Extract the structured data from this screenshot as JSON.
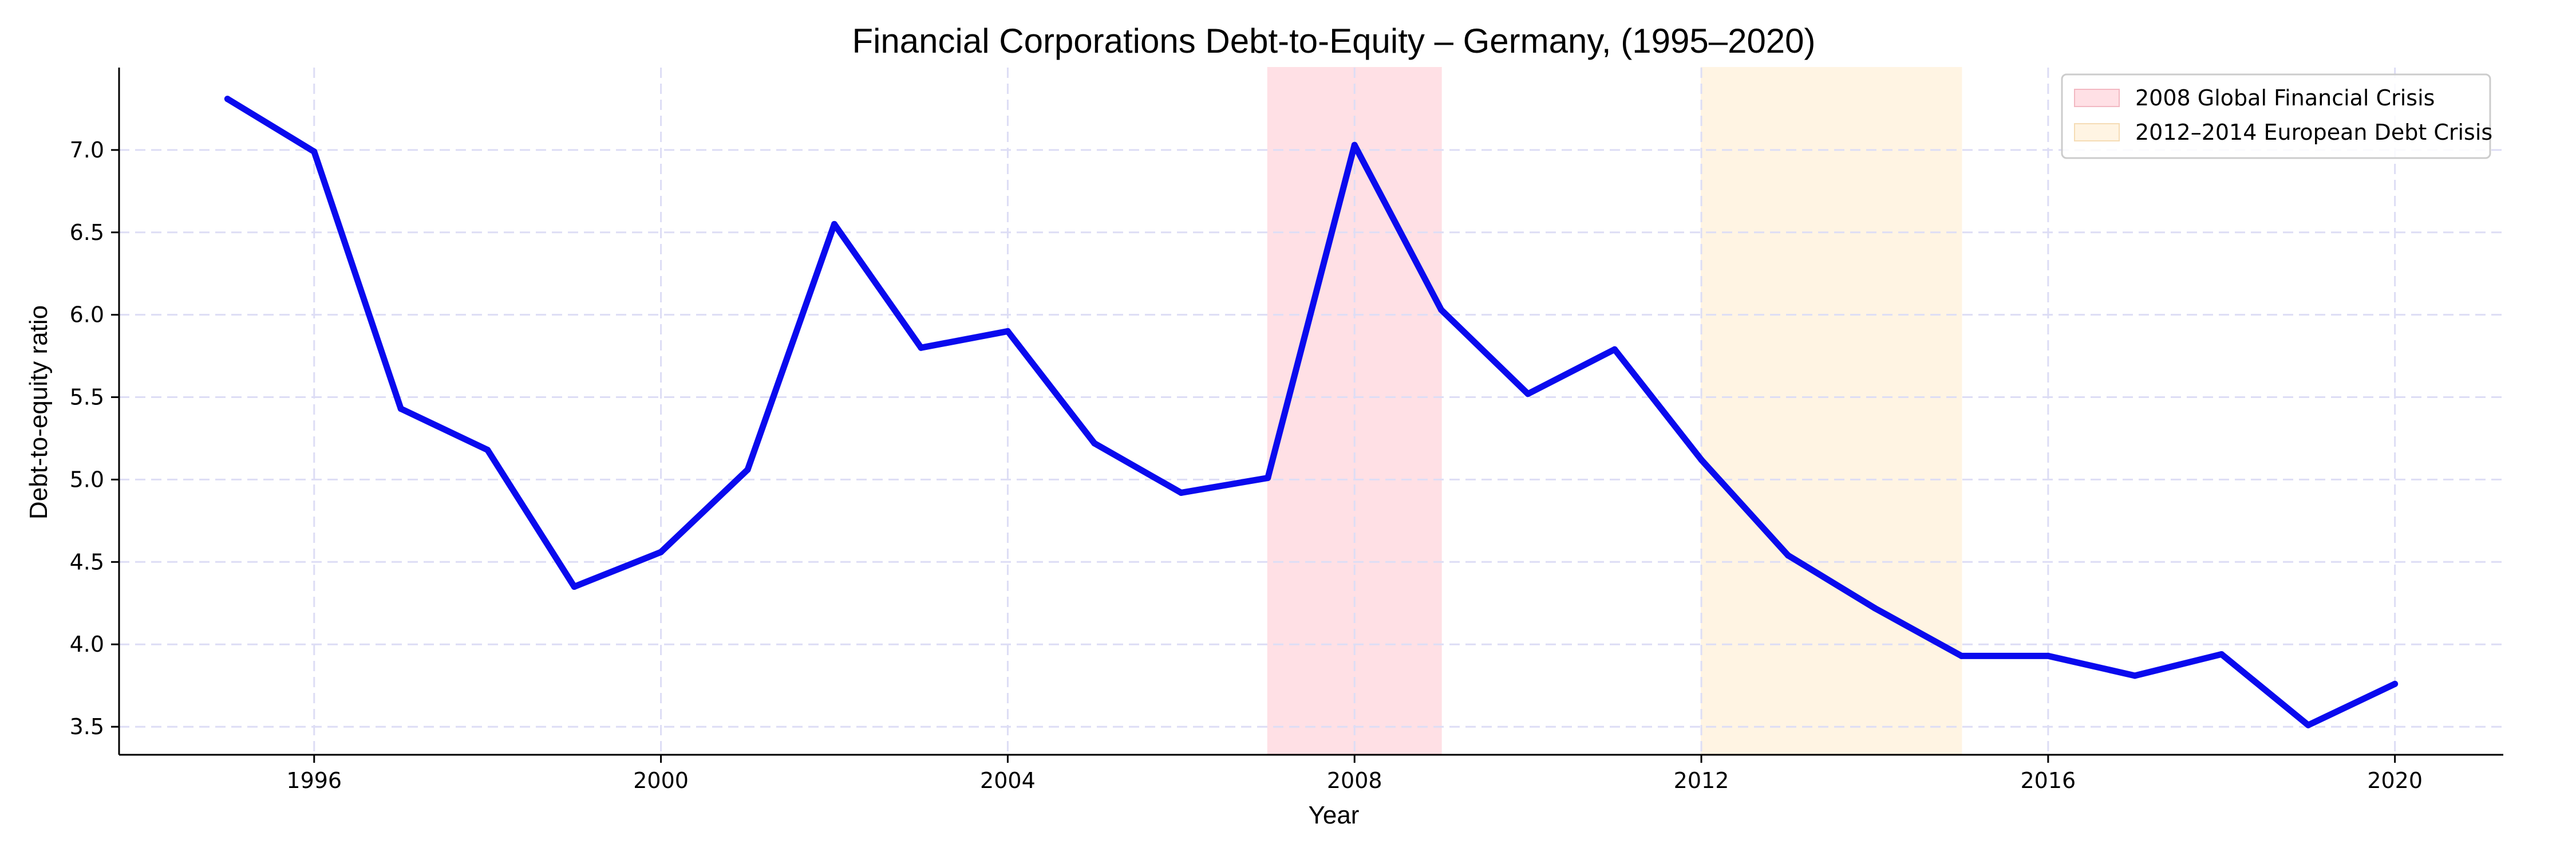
{
  "chart_data": {
    "type": "line",
    "title": "Financial Corporations Debt-to-Equity – Germany, (1995–2020)",
    "xlabel": "Year",
    "ylabel": "Debt-to-equity ratio",
    "x": [
      1995,
      1996,
      1997,
      1998,
      1999,
      2000,
      2001,
      2002,
      2003,
      2004,
      2005,
      2006,
      2007,
      2008,
      2009,
      2010,
      2011,
      2012,
      2013,
      2014,
      2015,
      2016,
      2017,
      2018,
      2019,
      2020
    ],
    "series": [
      {
        "values": [
          7.31,
          6.99,
          5.43,
          5.18,
          4.35,
          4.56,
          5.06,
          6.55,
          5.8,
          5.9,
          5.22,
          4.92,
          5.01,
          7.03,
          6.03,
          5.52,
          5.79,
          5.12,
          4.54,
          4.22,
          3.93,
          3.93,
          3.81,
          3.94,
          3.51,
          3.76
        ],
        "color": "#0a0aee"
      }
    ],
    "xlim": [
      1993.75,
      2021.25
    ],
    "ylim": [
      3.33,
      7.5
    ],
    "xticks": [
      1996,
      2000,
      2004,
      2008,
      2012,
      2016,
      2020
    ],
    "yticks": [
      3.5,
      4.0,
      4.5,
      5.0,
      5.5,
      6.0,
      6.5,
      7.0
    ],
    "grid": true,
    "grid_color": "#ddddf5",
    "legend_position": "top-right",
    "shaded_regions": [
      {
        "label": "2008 Global Financial Crisis",
        "x_start": 2007,
        "x_end": 2009,
        "color": "#ffe0e5"
      },
      {
        "label": "2012–2014 European Debt Crisis",
        "x_start": 2012,
        "x_end": 2015,
        "color": "#fff4e3"
      }
    ]
  }
}
